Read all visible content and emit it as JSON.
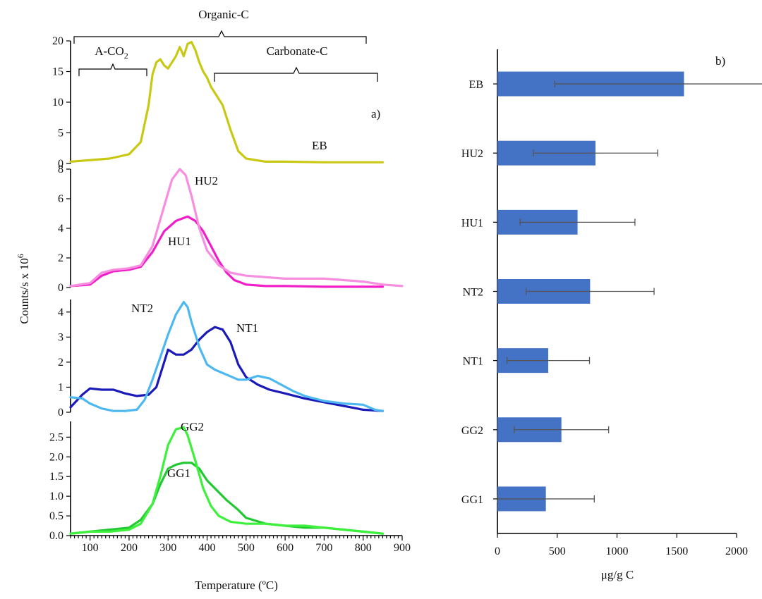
{
  "chart_data": [
    {
      "type": "line",
      "panel_label": "a)",
      "xlabel": "Temperature (ºC)",
      "ylabel": "Counts/s x 10",
      "ylabel_sup": "6",
      "xlim": [
        50,
        900
      ],
      "x_ticks": [
        "100",
        "200",
        "300",
        "400",
        "500",
        "600",
        "700",
        "800",
        "900"
      ],
      "annotations": {
        "organic": "Organic-C",
        "aco2_base": "A-CO",
        "aco2_sub": "2",
        "carbonate": "Carbonate-C"
      },
      "colors": {
        "EB": "#c9c814",
        "HU1": "#f01ec8",
        "HU2": "#f78ee0",
        "NT1": "#1a1ab8",
        "NT2": "#4db8f0",
        "GG1": "#22c832",
        "GG2": "#3cf03c"
      },
      "panels": [
        {
          "ylim": [
            0,
            20
          ],
          "y_ticks": [
            0,
            5,
            10,
            15,
            20
          ],
          "series": [
            {
              "name": "EB",
              "x": [
                50,
                150,
                200,
                230,
                250,
                260,
                270,
                280,
                290,
                300,
                310,
                320,
                330,
                340,
                350,
                360,
                370,
                380,
                390,
                400,
                410,
                420,
                440,
                460,
                480,
                500,
                550,
                600,
                700,
                800,
                850
              ],
              "y": [
                0.3,
                0.8,
                1.5,
                3.5,
                9.5,
                14.5,
                16.5,
                17.0,
                16.0,
                15.5,
                16.5,
                17.5,
                19.0,
                17.5,
                19.5,
                19.8,
                18.5,
                16.5,
                15.0,
                14.0,
                12.5,
                11.5,
                9.5,
                5.5,
                2.0,
                0.8,
                0.3,
                0.3,
                0.2,
                0.2,
                0.2
              ]
            }
          ]
        },
        {
          "ylim": [
            0,
            8
          ],
          "y_ticks": [
            0,
            2,
            4,
            6,
            8
          ],
          "series": [
            {
              "name": "HU1",
              "x": [
                50,
                100,
                130,
                160,
                200,
                230,
                260,
                290,
                320,
                350,
                370,
                390,
                410,
                430,
                450,
                470,
                500,
                550,
                600,
                700,
                800,
                850
              ],
              "y": [
                0.1,
                0.2,
                0.8,
                1.1,
                1.2,
                1.4,
                2.4,
                3.8,
                4.5,
                4.8,
                4.5,
                3.8,
                2.8,
                1.8,
                1.0,
                0.5,
                0.2,
                0.1,
                0.1,
                0.05,
                0.05,
                0.05
              ]
            },
            {
              "name": "HU2",
              "x": [
                50,
                100,
                130,
                160,
                200,
                230,
                260,
                290,
                310,
                330,
                345,
                360,
                380,
                400,
                430,
                460,
                500,
                550,
                600,
                650,
                700,
                750,
                800,
                850,
                900
              ],
              "y": [
                0.1,
                0.3,
                1.0,
                1.2,
                1.3,
                1.5,
                2.8,
                5.5,
                7.3,
                8.0,
                7.6,
                6.2,
                4.0,
                2.5,
                1.5,
                1.0,
                0.8,
                0.7,
                0.6,
                0.6,
                0.6,
                0.5,
                0.4,
                0.2,
                0.1
              ]
            }
          ]
        },
        {
          "ylim": [
            0,
            4.5
          ],
          "y_ticks": [
            0,
            1,
            2,
            3,
            4
          ],
          "series": [
            {
              "name": "NT1",
              "x": [
                50,
                80,
                100,
                130,
                160,
                190,
                220,
                250,
                270,
                290,
                300,
                320,
                340,
                360,
                380,
                400,
                420,
                440,
                460,
                480,
                500,
                530,
                560,
                600,
                650,
                700,
                750,
                800,
                850
              ],
              "y": [
                0.2,
                0.7,
                0.95,
                0.9,
                0.9,
                0.75,
                0.65,
                0.7,
                1.0,
                2.0,
                2.5,
                2.3,
                2.3,
                2.5,
                2.9,
                3.2,
                3.4,
                3.3,
                2.8,
                1.9,
                1.4,
                1.1,
                0.9,
                0.75,
                0.55,
                0.4,
                0.25,
                0.1,
                0.05
              ]
            },
            {
              "name": "NT2",
              "x": [
                50,
                80,
                100,
                130,
                160,
                190,
                220,
                240,
                260,
                280,
                300,
                320,
                340,
                350,
                360,
                380,
                400,
                420,
                450,
                480,
                500,
                530,
                560,
                590,
                620,
                650,
                700,
                750,
                800,
                830,
                850
              ],
              "y": [
                0.6,
                0.55,
                0.35,
                0.15,
                0.05,
                0.05,
                0.1,
                0.5,
                1.3,
                2.2,
                3.1,
                3.9,
                4.4,
                4.2,
                3.6,
                2.6,
                1.9,
                1.7,
                1.5,
                1.3,
                1.3,
                1.45,
                1.35,
                1.1,
                0.85,
                0.65,
                0.45,
                0.35,
                0.3,
                0.1,
                0.05
              ]
            }
          ]
        },
        {
          "ylim": [
            0,
            2.9
          ],
          "y_ticks": [
            0.0,
            0.5,
            1.0,
            1.5,
            2.0,
            2.5
          ],
          "series": [
            {
              "name": "GG1",
              "x": [
                50,
                100,
                150,
                200,
                230,
                260,
                280,
                300,
                320,
                340,
                360,
                380,
                400,
                420,
                450,
                480,
                500,
                550,
                600,
                650,
                700,
                750,
                800,
                850
              ],
              "y": [
                0.05,
                0.1,
                0.15,
                0.2,
                0.4,
                0.8,
                1.3,
                1.7,
                1.8,
                1.85,
                1.85,
                1.7,
                1.4,
                1.2,
                0.9,
                0.65,
                0.45,
                0.3,
                0.25,
                0.2,
                0.2,
                0.15,
                0.1,
                0.05
              ]
            },
            {
              "name": "GG2",
              "x": [
                50,
                100,
                150,
                200,
                230,
                260,
                280,
                300,
                320,
                340,
                350,
                370,
                390,
                410,
                430,
                460,
                500,
                550,
                600,
                650,
                700,
                750,
                800,
                850
              ],
              "y": [
                0.05,
                0.1,
                0.1,
                0.15,
                0.3,
                0.8,
                1.5,
                2.3,
                2.7,
                2.75,
                2.55,
                1.9,
                1.2,
                0.75,
                0.5,
                0.35,
                0.3,
                0.3,
                0.25,
                0.25,
                0.2,
                0.15,
                0.1,
                0.05
              ]
            }
          ]
        }
      ]
    },
    {
      "type": "bar",
      "orientation": "horizontal",
      "panel_label": "b)",
      "xlabel": "μg/g C",
      "xlim": [
        0,
        2000
      ],
      "x_ticks": [
        0,
        500,
        1000,
        1500,
        2000
      ],
      "bar_color": "#4472c4",
      "error_color": "#555555",
      "categories": [
        "EB",
        "HU2",
        "HU1",
        "NT2",
        "NT1",
        "GG2",
        "GG1"
      ],
      "values": [
        1560,
        820,
        670,
        775,
        425,
        535,
        405
      ],
      "errors": [
        1080,
        520,
        480,
        535,
        345,
        395,
        405
      ]
    }
  ]
}
